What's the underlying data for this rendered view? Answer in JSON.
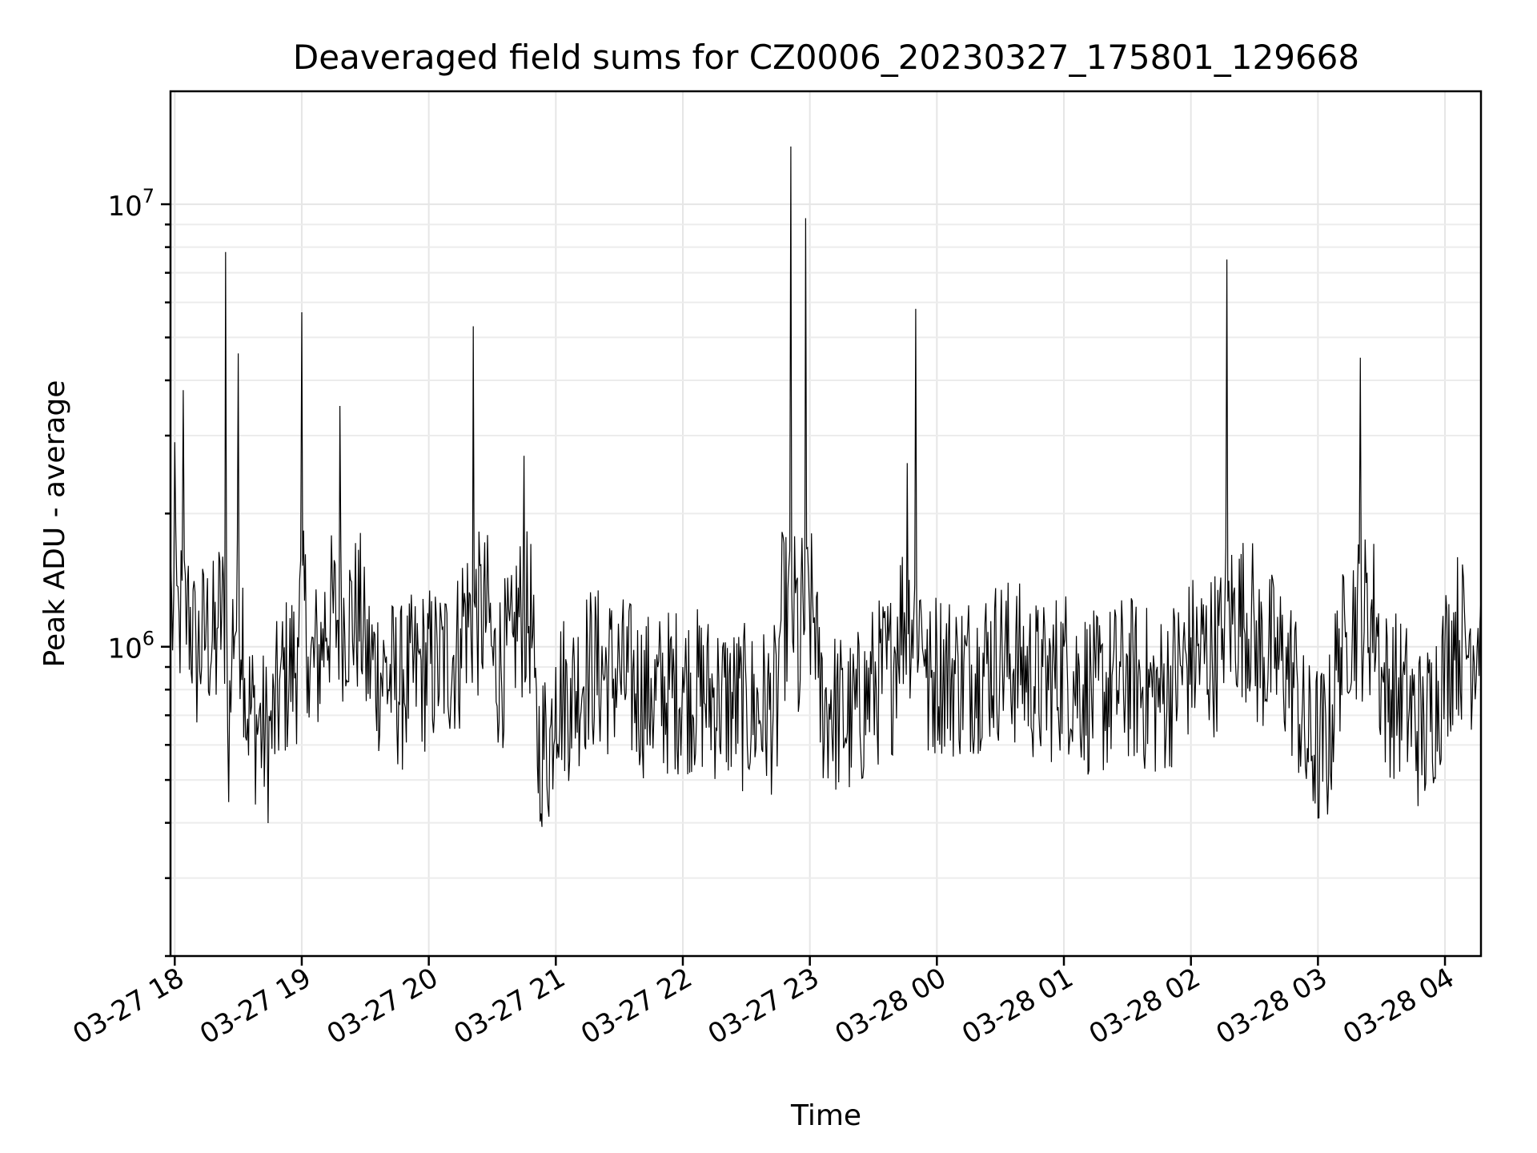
{
  "chart_data": {
    "type": "line",
    "title": "Deaveraged field sums for CZ0006_20230327_175801_129668",
    "xlabel": "Time",
    "ylabel": "Peak ADU - average",
    "yscale": "log",
    "ylim": [
      200000,
      18000000
    ],
    "xlim": [
      "2023-03-27 17:58",
      "2023-03-28 04:17"
    ],
    "grid": true,
    "legend": "none",
    "line_color": "#000000",
    "x_ticks": [
      "03-27 18",
      "03-27 19",
      "03-27 20",
      "03-27 21",
      "03-27 22",
      "03-27 23",
      "03-28 00",
      "03-28 01",
      "03-28 02",
      "03-28 03",
      "03-28 04"
    ],
    "y_ticks": [
      {
        "value": 1000000,
        "base": "10",
        "exp": "6"
      },
      {
        "value": 10000000,
        "base": "10",
        "exp": "7"
      }
    ],
    "series": [
      {
        "x": [
          "2023-03-27 17:58",
          "2023-03-27 18:00",
          "2023-03-27 18:02",
          "2023-03-27 18:04",
          "2023-03-27 18:06",
          "2023-03-27 18:10",
          "2023-03-27 18:15",
          "2023-03-27 18:20",
          "2023-03-27 18:24",
          "2023-03-27 18:25",
          "2023-03-27 18:27",
          "2023-03-27 18:30",
          "2023-03-27 18:33",
          "2023-03-27 18:40",
          "2023-03-27 18:45",
          "2023-03-27 18:50",
          "2023-03-27 18:58",
          "2023-03-27 19:00",
          "2023-03-27 19:03",
          "2023-03-27 19:10",
          "2023-03-27 19:18",
          "2023-03-27 19:30",
          "2023-03-27 19:40",
          "2023-03-27 19:48",
          "2023-03-27 19:55",
          "2023-03-27 20:04",
          "2023-03-27 20:15",
          "2023-03-27 20:21",
          "2023-03-27 20:30",
          "2023-03-27 20:40",
          "2023-03-27 20:45",
          "2023-03-27 20:50",
          "2023-03-27 20:53",
          "2023-03-27 21:00",
          "2023-03-27 21:07",
          "2023-03-27 21:15",
          "2023-03-27 21:30",
          "2023-03-27 21:45",
          "2023-03-27 22:00",
          "2023-03-27 22:17",
          "2023-03-27 22:30",
          "2023-03-27 22:45",
          "2023-03-27 22:51",
          "2023-03-27 22:55",
          "2023-03-27 22:58",
          "2023-03-27 23:04",
          "2023-03-27 23:10",
          "2023-03-27 23:20",
          "2023-03-27 23:30",
          "2023-03-27 23:40",
          "2023-03-27 23:46",
          "2023-03-27 23:50",
          "2023-03-27 23:55",
          "2023-03-28 00:00",
          "2023-03-28 00:10",
          "2023-03-28 00:20",
          "2023-03-28 00:30",
          "2023-03-28 00:40",
          "2023-03-28 00:50",
          "2023-03-28 01:00",
          "2023-03-28 01:15",
          "2023-03-28 01:30",
          "2023-03-28 01:45",
          "2023-03-28 02:00",
          "2023-03-28 02:15",
          "2023-03-28 02:17",
          "2023-03-28 02:30",
          "2023-03-28 02:40",
          "2023-03-28 02:45",
          "2023-03-28 02:50",
          "2023-03-28 03:00",
          "2023-03-28 03:10",
          "2023-03-28 03:13",
          "2023-03-28 03:20",
          "2023-03-28 03:30",
          "2023-03-28 03:40",
          "2023-03-28 03:50",
          "2023-03-28 04:00",
          "2023-03-28 04:05",
          "2023-03-28 04:12",
          "2023-03-28 04:17"
        ],
        "y": [
          1600000,
          2900000,
          1200000,
          3800000,
          1400000,
          1050000,
          1200000,
          1100000,
          7800000,
          650000,
          950000,
          4600000,
          850000,
          720000,
          680000,
          900000,
          1050000,
          5700000,
          950000,
          1100000,
          3500000,
          1050000,
          950000,
          890000,
          980000,
          1000000,
          1100000,
          5300000,
          1000000,
          1050000,
          2700000,
          850000,
          420000,
          900000,
          850000,
          1000000,
          950000,
          850000,
          900000,
          850000,
          800000,
          800000,
          13500000,
          750000,
          9300000,
          850000,
          800000,
          750000,
          900000,
          1000000,
          2600000,
          5800000,
          850000,
          1000000,
          950000,
          1000000,
          1050000,
          1000000,
          900000,
          1000000,
          850000,
          950000,
          850000,
          1050000,
          1100000,
          7500000,
          1100000,
          1050000,
          1000000,
          900000,
          410000,
          1100000,
          1050000,
          4500000,
          900000,
          850000,
          700000,
          1000000,
          1200000,
          1100000,
          1300000
        ]
      }
    ]
  }
}
